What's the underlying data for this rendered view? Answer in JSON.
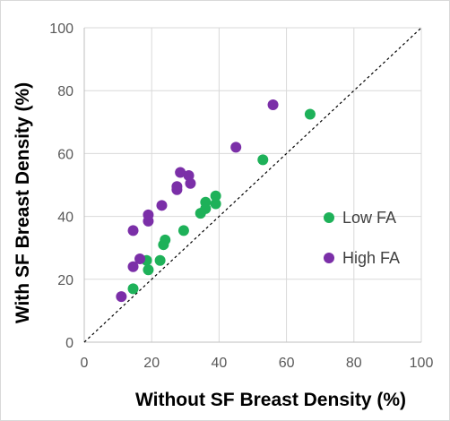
{
  "chart_data": {
    "type": "scatter",
    "title": "",
    "xlabel": "Without SF Breast Density (%)",
    "ylabel": "With SF Breast Density (%)",
    "xlim": [
      0,
      100
    ],
    "ylim": [
      0,
      100
    ],
    "xticks": [
      0,
      20,
      40,
      60,
      80,
      100
    ],
    "yticks": [
      0,
      20,
      40,
      60,
      80,
      100
    ],
    "grid": true,
    "legend_position": "right",
    "reference_line": "y = x",
    "series": [
      {
        "name": "Low FA",
        "color": "#1eb159",
        "points": [
          {
            "x": 14.5,
            "y": 17
          },
          {
            "x": 18.5,
            "y": 26
          },
          {
            "x": 19,
            "y": 23
          },
          {
            "x": 22.5,
            "y": 26
          },
          {
            "x": 23.5,
            "y": 31
          },
          {
            "x": 24,
            "y": 32.5
          },
          {
            "x": 29.5,
            "y": 35.5
          },
          {
            "x": 34.5,
            "y": 41
          },
          {
            "x": 36,
            "y": 42.5
          },
          {
            "x": 36,
            "y": 44.5
          },
          {
            "x": 39,
            "y": 44
          },
          {
            "x": 39,
            "y": 46.5
          },
          {
            "x": 53,
            "y": 58
          },
          {
            "x": 67,
            "y": 72.5
          }
        ]
      },
      {
        "name": "High FA",
        "color": "#7b2fa8",
        "points": [
          {
            "x": 11,
            "y": 14.5
          },
          {
            "x": 14.5,
            "y": 24
          },
          {
            "x": 14.5,
            "y": 35.5
          },
          {
            "x": 16.5,
            "y": 26.5
          },
          {
            "x": 19,
            "y": 38.5
          },
          {
            "x": 19,
            "y": 40.5
          },
          {
            "x": 23,
            "y": 43.5
          },
          {
            "x": 27.5,
            "y": 48.5
          },
          {
            "x": 27.5,
            "y": 49.5
          },
          {
            "x": 28.5,
            "y": 54
          },
          {
            "x": 31,
            "y": 53
          },
          {
            "x": 31.5,
            "y": 50.5
          },
          {
            "x": 45,
            "y": 62
          },
          {
            "x": 56,
            "y": 75.5
          }
        ]
      }
    ]
  }
}
